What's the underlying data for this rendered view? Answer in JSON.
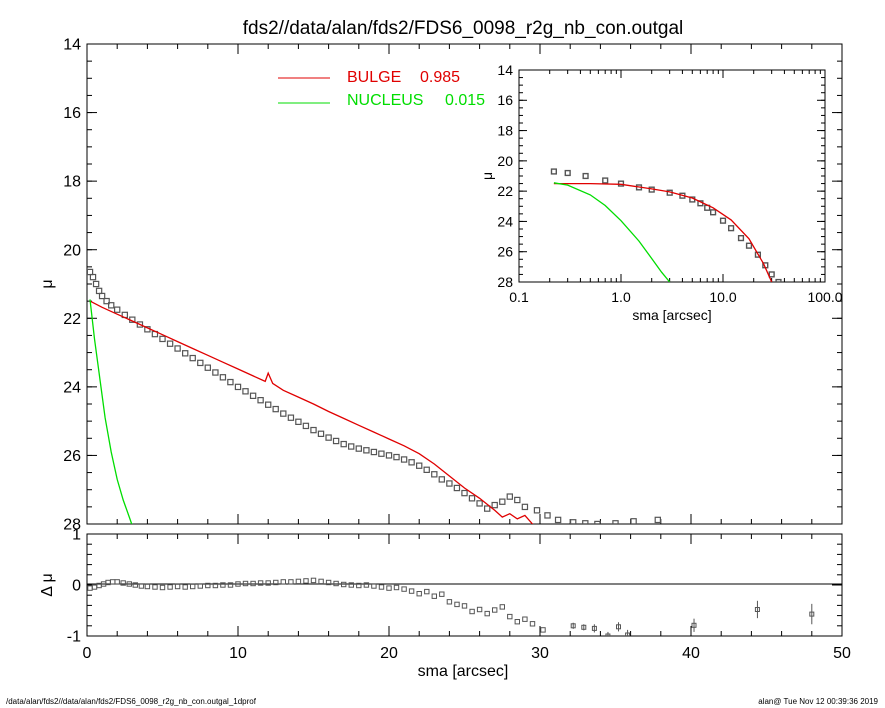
{
  "title": "fds2//data/alan/fds2/FDS6_0098_r2g_nb_con.outgal",
  "footer_left": "/data/alan/fds2//data/alan/fds2/FDS6_0098_r2g_nb_con.outgal_1dprof",
  "footer_right": "alan@  Tue Nov 12 00:39:36 2019",
  "colors": {
    "bulge": "#e00000",
    "nucleus": "#00dd00",
    "data": "#555555",
    "axis": "#000000"
  },
  "chart_data": [
    {
      "type": "scatter",
      "title": "fds2//data/alan/fds2/FDS6_0098_r2g_nb_con.outgal",
      "xlabel": "sma [arcsec]",
      "ylabel": "μ",
      "xlim": [
        0,
        50
      ],
      "ylim": [
        28,
        14
      ],
      "x_ticks": [
        0,
        10,
        20,
        30,
        40,
        50
      ],
      "x_tick_labels": [
        "0",
        "10",
        "20",
        "30",
        "40",
        "50"
      ],
      "y_ticks": [
        14,
        16,
        18,
        20,
        22,
        24,
        26,
        28
      ],
      "y_tick_labels": [
        "14",
        "16",
        "18",
        "20",
        "22",
        "24",
        "26",
        "28"
      ],
      "legend_position": "top-center",
      "legend": [
        {
          "label": "BULGE",
          "value": "0.985",
          "color": "#e00000"
        },
        {
          "label": "NUCLEUS",
          "value": "0.015",
          "color": "#00dd00"
        }
      ],
      "series": [
        {
          "name": "data",
          "style": "squares",
          "x": [
            0.2,
            0.4,
            0.6,
            0.8,
            1.0,
            1.3,
            1.6,
            2.0,
            2.5,
            3.0,
            3.5,
            4.0,
            4.5,
            5.0,
            5.5,
            6.0,
            6.5,
            7.0,
            7.5,
            8.0,
            8.5,
            9.0,
            9.5,
            10.0,
            10.5,
            11.0,
            11.5,
            12.0,
            12.5,
            13.0,
            13.5,
            14.0,
            14.5,
            15.0,
            15.5,
            16.0,
            16.5,
            17.0,
            17.5,
            18.0,
            18.5,
            19.0,
            19.5,
            20.0,
            20.5,
            21.0,
            21.5,
            22.0,
            22.5,
            23.0,
            23.5,
            24.0,
            24.5,
            25.0,
            25.5,
            26.0,
            26.5,
            27.0,
            27.5,
            28.0,
            28.5,
            29.0,
            29.8,
            30.5,
            31.2,
            32.2,
            33.0,
            33.8,
            35.0,
            36.2,
            37.8
          ],
          "y": [
            20.65,
            20.8,
            21.0,
            21.2,
            21.35,
            21.5,
            21.62,
            21.75,
            21.9,
            22.04,
            22.18,
            22.32,
            22.46,
            22.6,
            22.74,
            22.88,
            23.02,
            23.16,
            23.3,
            23.44,
            23.58,
            23.72,
            23.86,
            24.0,
            24.13,
            24.26,
            24.39,
            24.52,
            24.65,
            24.78,
            24.9,
            25.02,
            25.14,
            25.26,
            25.37,
            25.48,
            25.58,
            25.67,
            25.74,
            25.8,
            25.85,
            25.9,
            25.95,
            26.0,
            26.05,
            26.12,
            26.2,
            26.3,
            26.42,
            26.55,
            26.7,
            26.82,
            26.95,
            27.1,
            27.25,
            27.4,
            27.55,
            27.45,
            27.35,
            27.2,
            27.3,
            27.5,
            27.6,
            27.75,
            27.88,
            27.95,
            27.98,
            28.0,
            27.98,
            27.92,
            27.88
          ]
        },
        {
          "name": "BULGE",
          "style": "line",
          "color": "#e00000",
          "x": [
            0.2,
            1,
            2,
            3,
            4,
            5,
            6,
            7,
            8,
            9,
            10,
            11,
            11.8,
            12.0,
            12.3,
            13,
            14,
            15,
            16,
            17,
            18,
            19,
            20,
            21,
            22,
            23,
            24,
            25,
            26,
            27,
            27.5,
            28,
            28.5,
            29,
            29.5,
            30,
            30.5
          ],
          "y": [
            21.5,
            21.68,
            21.88,
            22.08,
            22.28,
            22.48,
            22.68,
            22.88,
            23.08,
            23.28,
            23.48,
            23.68,
            23.84,
            23.6,
            23.9,
            24.1,
            24.3,
            24.5,
            24.72,
            24.92,
            25.12,
            25.32,
            25.52,
            25.72,
            25.95,
            26.25,
            26.6,
            26.95,
            27.25,
            27.6,
            27.8,
            27.7,
            27.85,
            27.75,
            28.0,
            28.25,
            28.6
          ]
        },
        {
          "name": "NUCLEUS",
          "style": "line",
          "color": "#00dd00",
          "x": [
            0.2,
            0.5,
            0.8,
            1.2,
            1.6,
            2.0,
            2.4,
            2.8,
            3.2
          ],
          "y": [
            21.45,
            22.6,
            23.6,
            24.9,
            25.9,
            26.7,
            27.3,
            27.8,
            28.3
          ]
        }
      ]
    },
    {
      "type": "scatter",
      "title": "",
      "xlabel": "sma [arcsec]",
      "ylabel": "μ",
      "x_scale": "log",
      "xlim": [
        0.1,
        100.0
      ],
      "ylim": [
        28,
        14
      ],
      "x_ticks": [
        0.1,
        1.0,
        10.0,
        100.0
      ],
      "x_tick_labels": [
        "0.1",
        "1.0",
        "10.0",
        "100.0"
      ],
      "y_ticks": [
        14,
        16,
        18,
        20,
        22,
        24,
        26,
        28
      ],
      "y_tick_labels": [
        "14",
        "16",
        "18",
        "20",
        "22",
        "24",
        "26",
        "28"
      ],
      "series": [
        {
          "name": "data",
          "style": "squares",
          "x": [
            0.22,
            0.3,
            0.45,
            0.7,
            1.0,
            1.5,
            2.0,
            3.0,
            4.0,
            5.0,
            6.0,
            7.0,
            8.0,
            10.0,
            12.0,
            15.0,
            18.0,
            22.0,
            26.0,
            30.0,
            35.0
          ],
          "y": [
            20.7,
            20.8,
            21.0,
            21.3,
            21.5,
            21.75,
            21.9,
            22.1,
            22.3,
            22.55,
            22.8,
            23.1,
            23.4,
            23.95,
            24.45,
            25.1,
            25.6,
            26.2,
            26.9,
            27.5,
            28.0
          ]
        },
        {
          "name": "BULGE",
          "style": "line",
          "color": "#e00000",
          "x": [
            0.22,
            0.5,
            1.0,
            2.0,
            3.0,
            5.0,
            8.0,
            12.0,
            18.0,
            25.0,
            30.0
          ],
          "y": [
            21.5,
            21.5,
            21.55,
            21.85,
            22.05,
            22.45,
            23.1,
            23.9,
            25.15,
            26.8,
            28.0
          ]
        },
        {
          "name": "NUCLEUS",
          "style": "line",
          "color": "#00dd00",
          "x": [
            0.22,
            0.3,
            0.5,
            0.7,
            1.0,
            1.5,
            2.0,
            2.5,
            3.0
          ],
          "y": [
            21.45,
            21.6,
            22.25,
            22.95,
            23.95,
            25.3,
            26.45,
            27.35,
            28.0
          ]
        }
      ]
    },
    {
      "type": "scatter",
      "title": "",
      "xlabel": "sma [arcsec]",
      "ylabel": "Δ μ",
      "xlim": [
        0,
        50
      ],
      "ylim": [
        -1,
        1
      ],
      "x_ticks": [
        0,
        10,
        20,
        30,
        40,
        50
      ],
      "x_tick_labels": [
        "0",
        "10",
        "20",
        "30",
        "40",
        "50"
      ],
      "y_ticks": [
        -1,
        0,
        1
      ],
      "y_tick_labels": [
        "-1",
        "0",
        "1"
      ],
      "zero_line": true,
      "series": [
        {
          "name": "residual",
          "style": "squares",
          "x": [
            0.2,
            0.5,
            0.8,
            1.1,
            1.4,
            1.7,
            2.0,
            2.4,
            2.8,
            3.2,
            3.6,
            4.0,
            4.5,
            5.0,
            5.5,
            6.0,
            6.5,
            7.0,
            7.5,
            8.0,
            8.5,
            9.0,
            9.5,
            10.0,
            10.5,
            11.0,
            11.5,
            12.0,
            12.5,
            13.0,
            13.5,
            14.0,
            14.5,
            15.0,
            15.5,
            16.0,
            16.5,
            17.0,
            17.5,
            18.0,
            18.5,
            19.0,
            19.5,
            20.0,
            20.5,
            21.0,
            21.5,
            22.0,
            22.5,
            23.0,
            23.5,
            24.0,
            24.5,
            25.0,
            25.5,
            26.0,
            26.5,
            27.0,
            27.5,
            28.0,
            28.5,
            29.0,
            29.5,
            30.2
          ],
          "y": [
            -0.06,
            -0.04,
            -0.01,
            0.02,
            0.05,
            0.06,
            0.06,
            0.04,
            0.02,
            0.0,
            -0.02,
            -0.03,
            -0.04,
            -0.05,
            -0.04,
            -0.03,
            -0.04,
            -0.03,
            -0.02,
            -0.01,
            -0.01,
            0.0,
            0.0,
            0.02,
            0.03,
            0.03,
            0.04,
            0.04,
            0.05,
            0.06,
            0.06,
            0.07,
            0.08,
            0.09,
            0.07,
            0.05,
            0.03,
            0.01,
            0.0,
            -0.01,
            0.0,
            -0.02,
            -0.04,
            -0.06,
            -0.05,
            -0.08,
            -0.12,
            -0.17,
            -0.13,
            -0.22,
            -0.18,
            -0.33,
            -0.38,
            -0.41,
            -0.52,
            -0.48,
            -0.56,
            -0.49,
            -0.43,
            -0.62,
            -0.72,
            -0.67,
            -0.76,
            -0.88
          ]
        },
        {
          "name": "residual_err",
          "style": "errorbars",
          "x": [
            32.2,
            32.9,
            33.6,
            34.5,
            35.2,
            35.8,
            40.2,
            44.4,
            48.0
          ],
          "y": [
            -0.8,
            -0.83,
            -0.85,
            -1.0,
            -0.82,
            -0.98,
            -0.79,
            -0.48,
            -0.57
          ],
          "err": [
            0.06,
            0.06,
            0.08,
            0.08,
            0.09,
            0.1,
            0.13,
            0.17,
            0.2
          ]
        }
      ]
    }
  ]
}
